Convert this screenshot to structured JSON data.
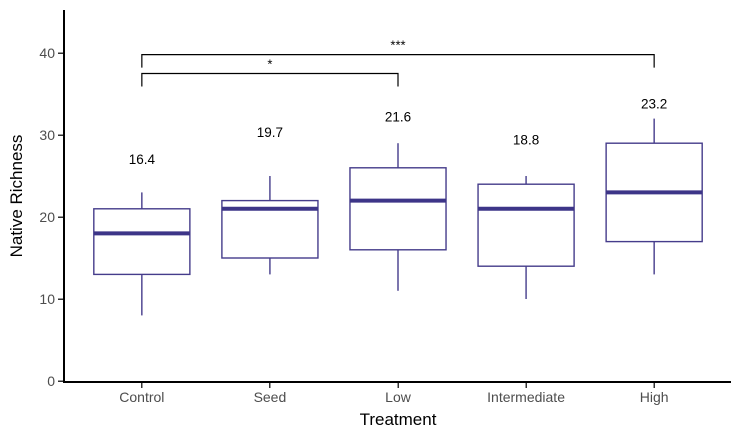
{
  "chart_data": {
    "type": "boxplot",
    "title": "",
    "xlabel": "Treatment",
    "ylabel": "Native Richness",
    "categories": [
      "Control",
      "Seed",
      "Low",
      "Intermediate",
      "High"
    ],
    "y_ticks": [
      0,
      10,
      20,
      30,
      40
    ],
    "ylim": [
      0,
      45
    ],
    "grid": false,
    "legend": false,
    "boxes": [
      {
        "category": "Control",
        "whisker_low": 8,
        "q1": 13,
        "median": 18,
        "q3": 21,
        "whisker_high": 23,
        "mean_label": "16.4"
      },
      {
        "category": "Seed",
        "whisker_low": 13,
        "q1": 15,
        "median": 21,
        "q3": 22,
        "whisker_high": 25,
        "mean_label": "19.7"
      },
      {
        "category": "Low",
        "whisker_low": 11,
        "q1": 16,
        "median": 22,
        "q3": 26,
        "whisker_high": 29,
        "mean_label": "21.6"
      },
      {
        "category": "Intermediate",
        "whisker_low": 10,
        "q1": 14,
        "median": 21,
        "q3": 24,
        "whisker_high": 25,
        "mean_label": "18.8"
      },
      {
        "category": "High",
        "whisker_low": 13,
        "q1": 17,
        "median": 23,
        "q3": 29,
        "whisker_high": 32,
        "mean_label": "23.2"
      }
    ],
    "significance_brackets": [
      {
        "from": "Control",
        "to": "Low",
        "label": "*",
        "y": 37.5
      },
      {
        "from": "Control",
        "to": "High",
        "label": "***",
        "y": 39.8
      }
    ],
    "colors": {
      "box_outline": "#453C8B",
      "median": "#3D3588",
      "axis": "#000000",
      "tick_label": "#4D4D4D",
      "annotation": "#000000",
      "background": "#FFFFFF"
    }
  }
}
